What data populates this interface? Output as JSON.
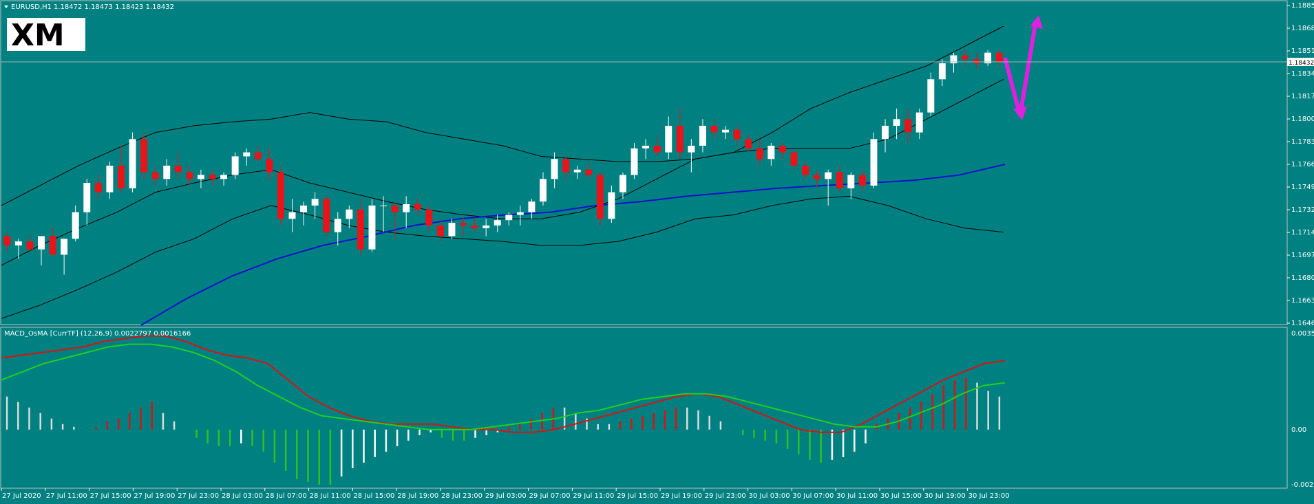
{
  "header": {
    "symbol": "EURUSD,H1",
    "ohlc": "1.18472 1.18473 1.18423 1.18432",
    "indicator": "MACD_OsMA [CurrTF] (12,26,9) 0.0022797 0.0016166"
  },
  "logo": {
    "text": "XM"
  },
  "colors": {
    "background": "#008080",
    "bull_candle": "#ffffff",
    "bear_candle": "#e8141a",
    "bollinger": "#000000",
    "ma": "#1010d0",
    "macd_line": "#e01010",
    "signal_line": "#20d020",
    "hist_pos": "#dddddd",
    "hist_red": "#e01010",
    "hist_green": "#30c020",
    "arrow": "#e020e0",
    "grid_line": "#b0b0b0"
  },
  "price_axis": {
    "labels": [
      "1.18855",
      "1.18685",
      "1.18515",
      "1.18345",
      "1.18175",
      "1.18000",
      "1.17830",
      "1.17660",
      "1.17490",
      "1.17320",
      "1.17145",
      "1.16975",
      "1.16805",
      "1.16635",
      "1.16465"
    ],
    "current_price": "1.18432"
  },
  "macd_axis": {
    "labels": [
      "0.003563",
      "0.00",
      "-0.002077"
    ]
  },
  "time_axis": {
    "labels": [
      "27 Jul 2020",
      "27 Jul 11:00",
      "27 Jul 15:00",
      "27 Jul 19:00",
      "27 Jul 23:00",
      "28 Jul 03:00",
      "28 Jul 07:00",
      "28 Jul 11:00",
      "28 Jul 15:00",
      "28 Jul 19:00",
      "28 Jul 23:00",
      "29 Jul 03:00",
      "29 Jul 07:00",
      "29 Jul 11:00",
      "29 Jul 15:00",
      "29 Jul 19:00",
      "29 Jul 23:00",
      "30 Jul 03:00",
      "30 Jul 07:00",
      "30 Jul 11:00",
      "30 Jul 15:00",
      "30 Jul 19:00",
      "30 Jul 23:00"
    ]
  },
  "chart_data": {
    "type": "candlestick",
    "symbol": "EURUSD",
    "timeframe": "H1",
    "ylim": [
      1.16465,
      1.18855
    ],
    "candles": [
      [
        1.1712,
        1.1715,
        1.17,
        1.1705
      ],
      [
        1.1705,
        1.171,
        1.1695,
        1.1708
      ],
      [
        1.1708,
        1.1713,
        1.17,
        1.1702
      ],
      [
        1.1702,
        1.1712,
        1.169,
        1.1712
      ],
      [
        1.1712,
        1.1718,
        1.17,
        1.1698
      ],
      [
        1.1698,
        1.171,
        1.1683,
        1.171
      ],
      [
        1.171,
        1.1735,
        1.1708,
        1.173
      ],
      [
        1.173,
        1.1755,
        1.172,
        1.1752
      ],
      [
        1.1752,
        1.1758,
        1.174,
        1.1745
      ],
      [
        1.1745,
        1.1768,
        1.174,
        1.1765
      ],
      [
        1.1765,
        1.178,
        1.1745,
        1.1748
      ],
      [
        1.1748,
        1.179,
        1.1745,
        1.1785
      ],
      [
        1.1785,
        1.179,
        1.1755,
        1.176
      ],
      [
        1.176,
        1.1765,
        1.175,
        1.1755
      ],
      [
        1.1755,
        1.177,
        1.175,
        1.1765
      ],
      [
        1.1765,
        1.1775,
        1.1755,
        1.176
      ],
      [
        1.176,
        1.1765,
        1.175,
        1.1755
      ],
      [
        1.1755,
        1.1762,
        1.1748,
        1.1758
      ],
      [
        1.1758,
        1.1762,
        1.175,
        1.1755
      ],
      [
        1.1755,
        1.176,
        1.175,
        1.1758
      ],
      [
        1.1758,
        1.1775,
        1.1755,
        1.1772
      ],
      [
        1.1772,
        1.1778,
        1.1765,
        1.1775
      ],
      [
        1.1775,
        1.178,
        1.1768,
        1.177
      ],
      [
        1.177,
        1.1778,
        1.1755,
        1.176
      ],
      [
        1.176,
        1.1765,
        1.172,
        1.1725
      ],
      [
        1.1725,
        1.174,
        1.1715,
        1.173
      ],
      [
        1.173,
        1.1738,
        1.172,
        1.1735
      ],
      [
        1.1735,
        1.1745,
        1.1725,
        1.174
      ],
      [
        1.174,
        1.1742,
        1.1712,
        1.1715
      ],
      [
        1.1715,
        1.173,
        1.1705,
        1.1725
      ],
      [
        1.1725,
        1.1735,
        1.1718,
        1.1732
      ],
      [
        1.1732,
        1.174,
        1.1698,
        1.1702
      ],
      [
        1.1702,
        1.174,
        1.17,
        1.1735
      ],
      [
        1.1735,
        1.1742,
        1.1715,
        1.1735
      ],
      [
        1.1735,
        1.1738,
        1.171,
        1.173
      ],
      [
        1.173,
        1.1742,
        1.1718,
        1.1736
      ],
      [
        1.1736,
        1.174,
        1.1728,
        1.1732
      ],
      [
        1.1732,
        1.1735,
        1.1715,
        1.172
      ],
      [
        1.172,
        1.1725,
        1.1708,
        1.1712
      ],
      [
        1.1712,
        1.1725,
        1.171,
        1.1722
      ],
      [
        1.1722,
        1.1726,
        1.1712,
        1.172
      ],
      [
        1.172,
        1.1725,
        1.1715,
        1.1718
      ],
      [
        1.1718,
        1.1725,
        1.1712,
        1.172
      ],
      [
        1.172,
        1.1728,
        1.1715,
        1.1724
      ],
      [
        1.1724,
        1.173,
        1.172,
        1.1728
      ],
      [
        1.1728,
        1.1735,
        1.172,
        1.173
      ],
      [
        1.173,
        1.174,
        1.1725,
        1.1738
      ],
      [
        1.1738,
        1.176,
        1.1735,
        1.1755
      ],
      [
        1.1755,
        1.1775,
        1.1748,
        1.177
      ],
      [
        1.177,
        1.1772,
        1.1755,
        1.176
      ],
      [
        1.176,
        1.1765,
        1.1755,
        1.1762
      ],
      [
        1.1762,
        1.1768,
        1.1755,
        1.1758
      ],
      [
        1.1758,
        1.176,
        1.172,
        1.1725
      ],
      [
        1.1725,
        1.175,
        1.1722,
        1.1745
      ],
      [
        1.1745,
        1.176,
        1.174,
        1.1758
      ],
      [
        1.1758,
        1.1782,
        1.1755,
        1.1778
      ],
      [
        1.1778,
        1.1785,
        1.177,
        1.178
      ],
      [
        1.178,
        1.1788,
        1.1772,
        1.1775
      ],
      [
        1.1775,
        1.1802,
        1.177,
        1.1795
      ],
      [
        1.1795,
        1.1808,
        1.177,
        1.1775
      ],
      [
        1.1775,
        1.1785,
        1.176,
        1.178
      ],
      [
        1.178,
        1.18,
        1.1775,
        1.1795
      ],
      [
        1.1795,
        1.18,
        1.1785,
        1.179
      ],
      [
        1.179,
        1.1795,
        1.1785,
        1.1792
      ],
      [
        1.1792,
        1.1795,
        1.178,
        1.1785
      ],
      [
        1.1785,
        1.1788,
        1.1775,
        1.1778
      ],
      [
        1.1778,
        1.1785,
        1.1765,
        1.177
      ],
      [
        1.177,
        1.1782,
        1.1765,
        1.178
      ],
      [
        1.178,
        1.1782,
        1.177,
        1.1775
      ],
      [
        1.1775,
        1.1778,
        1.1762,
        1.1765
      ],
      [
        1.1765,
        1.1768,
        1.1755,
        1.1758
      ],
      [
        1.1758,
        1.1762,
        1.1748,
        1.1755
      ],
      [
        1.1755,
        1.1762,
        1.1735,
        1.176
      ],
      [
        1.176,
        1.1765,
        1.1745,
        1.1748
      ],
      [
        1.1748,
        1.176,
        1.174,
        1.1758
      ],
      [
        1.1758,
        1.1762,
        1.1745,
        1.175
      ],
      [
        1.175,
        1.179,
        1.1748,
        1.1785
      ],
      [
        1.1785,
        1.18,
        1.1775,
        1.1795
      ],
      [
        1.1795,
        1.1808,
        1.1785,
        1.18
      ],
      [
        1.18,
        1.1808,
        1.1782,
        1.179
      ],
      [
        1.179,
        1.1808,
        1.1785,
        1.1805
      ],
      [
        1.1805,
        1.1835,
        1.1802,
        1.183
      ],
      [
        1.183,
        1.1845,
        1.1825,
        1.1842
      ],
      [
        1.1842,
        1.185,
        1.1835,
        1.1848
      ],
      [
        1.1848,
        1.1852,
        1.184,
        1.1845
      ],
      [
        1.1845,
        1.185,
        1.1838,
        1.1842
      ],
      [
        1.1842,
        1.1852,
        1.184,
        1.185
      ],
      [
        1.185,
        1.1852,
        1.184,
        1.1843
      ]
    ],
    "bollinger_upper": [
      1.1735,
      1.175,
      1.1765,
      1.1778,
      1.179,
      1.1795,
      1.1798,
      1.18,
      1.1805,
      1.18,
      1.1798,
      1.179,
      1.1785,
      1.178,
      1.1772,
      1.177,
      1.1768,
      1.1768,
      1.177,
      1.1775,
      1.179,
      1.1808,
      1.182,
      1.183,
      1.184,
      1.1855,
      1.187
    ],
    "bollinger_lower": [
      1.165,
      1.166,
      1.1672,
      1.1685,
      1.17,
      1.171,
      1.1725,
      1.1735,
      1.1728,
      1.172,
      1.1715,
      1.1712,
      1.171,
      1.1708,
      1.1705,
      1.1705,
      1.1708,
      1.1715,
      1.1725,
      1.1728,
      1.1735,
      1.174,
      1.1742,
      1.1735,
      1.1725,
      1.1718,
      1.1715
    ],
    "bollinger_mid": [
      1.169,
      1.1705,
      1.1718,
      1.173,
      1.1745,
      1.1752,
      1.1758,
      1.1762,
      1.1752,
      1.1745,
      1.1738,
      1.1732,
      1.1728,
      1.1725,
      1.1725,
      1.173,
      1.174,
      1.1755,
      1.177,
      1.1775,
      1.1778,
      1.1778,
      1.1778,
      1.1785,
      1.18,
      1.1815,
      1.183
    ],
    "ma": [
      1.1645,
      1.1665,
      1.1682,
      1.1695,
      1.1705,
      1.1712,
      1.172,
      1.1725,
      1.1728,
      1.173,
      1.1735,
      1.1738,
      1.1742,
      1.1745,
      1.1748,
      1.175,
      1.1752,
      1.1754,
      1.1758,
      1.1766
    ],
    "macd_histogram": [
      0.0012,
      0.001,
      0.0008,
      0.0006,
      0.0004,
      0.0002,
      0.0001,
      0.0,
      0.0001,
      0.0003,
      0.0004,
      0.0006,
      0.0008,
      0.001,
      0.0006,
      0.0003,
      0.0,
      -0.0003,
      -0.0005,
      -0.0006,
      -0.0006,
      -0.0005,
      -0.0006,
      -0.0008,
      -0.0012,
      -0.0015,
      -0.0018,
      -0.0019,
      -0.002,
      -0.002,
      -0.0017,
      -0.0014,
      -0.0012,
      -0.001,
      -0.0008,
      -0.0006,
      -0.0004,
      -0.0002,
      -0.0001,
      -0.0003,
      -0.0004,
      -0.0004,
      -0.0003,
      -0.0002,
      -0.0001,
      0.0001,
      0.0002,
      0.0004,
      0.0006,
      0.0008,
      0.0008,
      0.0006,
      0.0004,
      0.0002,
      0.0002,
      0.0003,
      0.0004,
      0.0005,
      0.0006,
      0.0007,
      0.0008,
      0.0008,
      0.0007,
      0.0005,
      0.0003,
      0.0,
      -0.0002,
      -0.0003,
      -0.0004,
      -0.0005,
      -0.0007,
      -0.0009,
      -0.0011,
      -0.0012,
      -0.0011,
      -0.001,
      -0.0008,
      -0.0005,
      0.0002,
      0.0004,
      0.0006,
      0.0008,
      0.001,
      0.0013,
      0.0016,
      0.0018,
      0.0019,
      0.0017,
      0.0014,
      0.0012
    ],
    "macd_line": [
      0.0026,
      0.0027,
      0.0028,
      0.0029,
      0.003,
      0.0032,
      0.0033,
      0.0034,
      0.0034,
      0.0032,
      0.0029,
      0.0027,
      0.0026,
      0.0024,
      0.0018,
      0.0012,
      0.0008,
      0.0005,
      0.0003,
      0.0002,
      0.0002,
      0.0002,
      0.0001,
      0.0,
      0.0,
      -0.0001,
      -0.0001,
      0.0,
      0.0002,
      0.0004,
      0.0006,
      0.0008,
      0.001,
      0.0012,
      0.0013,
      0.0012,
      0.0009,
      0.0006,
      0.0003,
      0.0,
      -0.0001,
      -0.0001,
      0.0002,
      0.0006,
      0.001,
      0.0014,
      0.0018,
      0.0021,
      0.0024,
      0.0025
    ],
    "signal_line": [
      0.0018,
      0.0021,
      0.0024,
      0.0026,
      0.0028,
      0.003,
      0.0031,
      0.0031,
      0.003,
      0.0028,
      0.0025,
      0.0021,
      0.0016,
      0.0012,
      0.0008,
      0.0005,
      0.0004,
      0.0003,
      0.0002,
      0.0001,
      0.0,
      0.0,
      0.0,
      0.0001,
      0.0002,
      0.0003,
      0.0004,
      0.0006,
      0.0007,
      0.0009,
      0.0011,
      0.0012,
      0.0013,
      0.0013,
      0.0012,
      0.001,
      0.0008,
      0.0006,
      0.0004,
      0.0002,
      0.0001,
      0.0001,
      0.0003,
      0.0006,
      0.0009,
      0.0013,
      0.0016,
      0.0017
    ],
    "macd_ylim": [
      -0.002077,
      0.003563
    ]
  }
}
